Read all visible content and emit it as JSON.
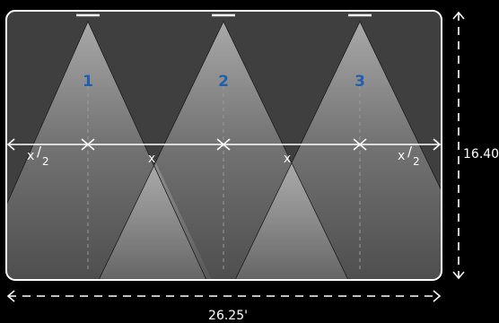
{
  "colors": {
    "background": "#000000",
    "room": "#3f3f3f",
    "room_border": "#ffffff",
    "dimension_line": "#ffffff",
    "fixture_number": "#1f5fae"
  },
  "fixtures": [
    {
      "number": "1"
    },
    {
      "number": "2"
    },
    {
      "number": "3"
    }
  ],
  "spacing_labels": {
    "half_base": "x",
    "half_sub": "2",
    "full": "x"
  },
  "dimensions": {
    "width": "26.25'",
    "height": "16.40'"
  }
}
